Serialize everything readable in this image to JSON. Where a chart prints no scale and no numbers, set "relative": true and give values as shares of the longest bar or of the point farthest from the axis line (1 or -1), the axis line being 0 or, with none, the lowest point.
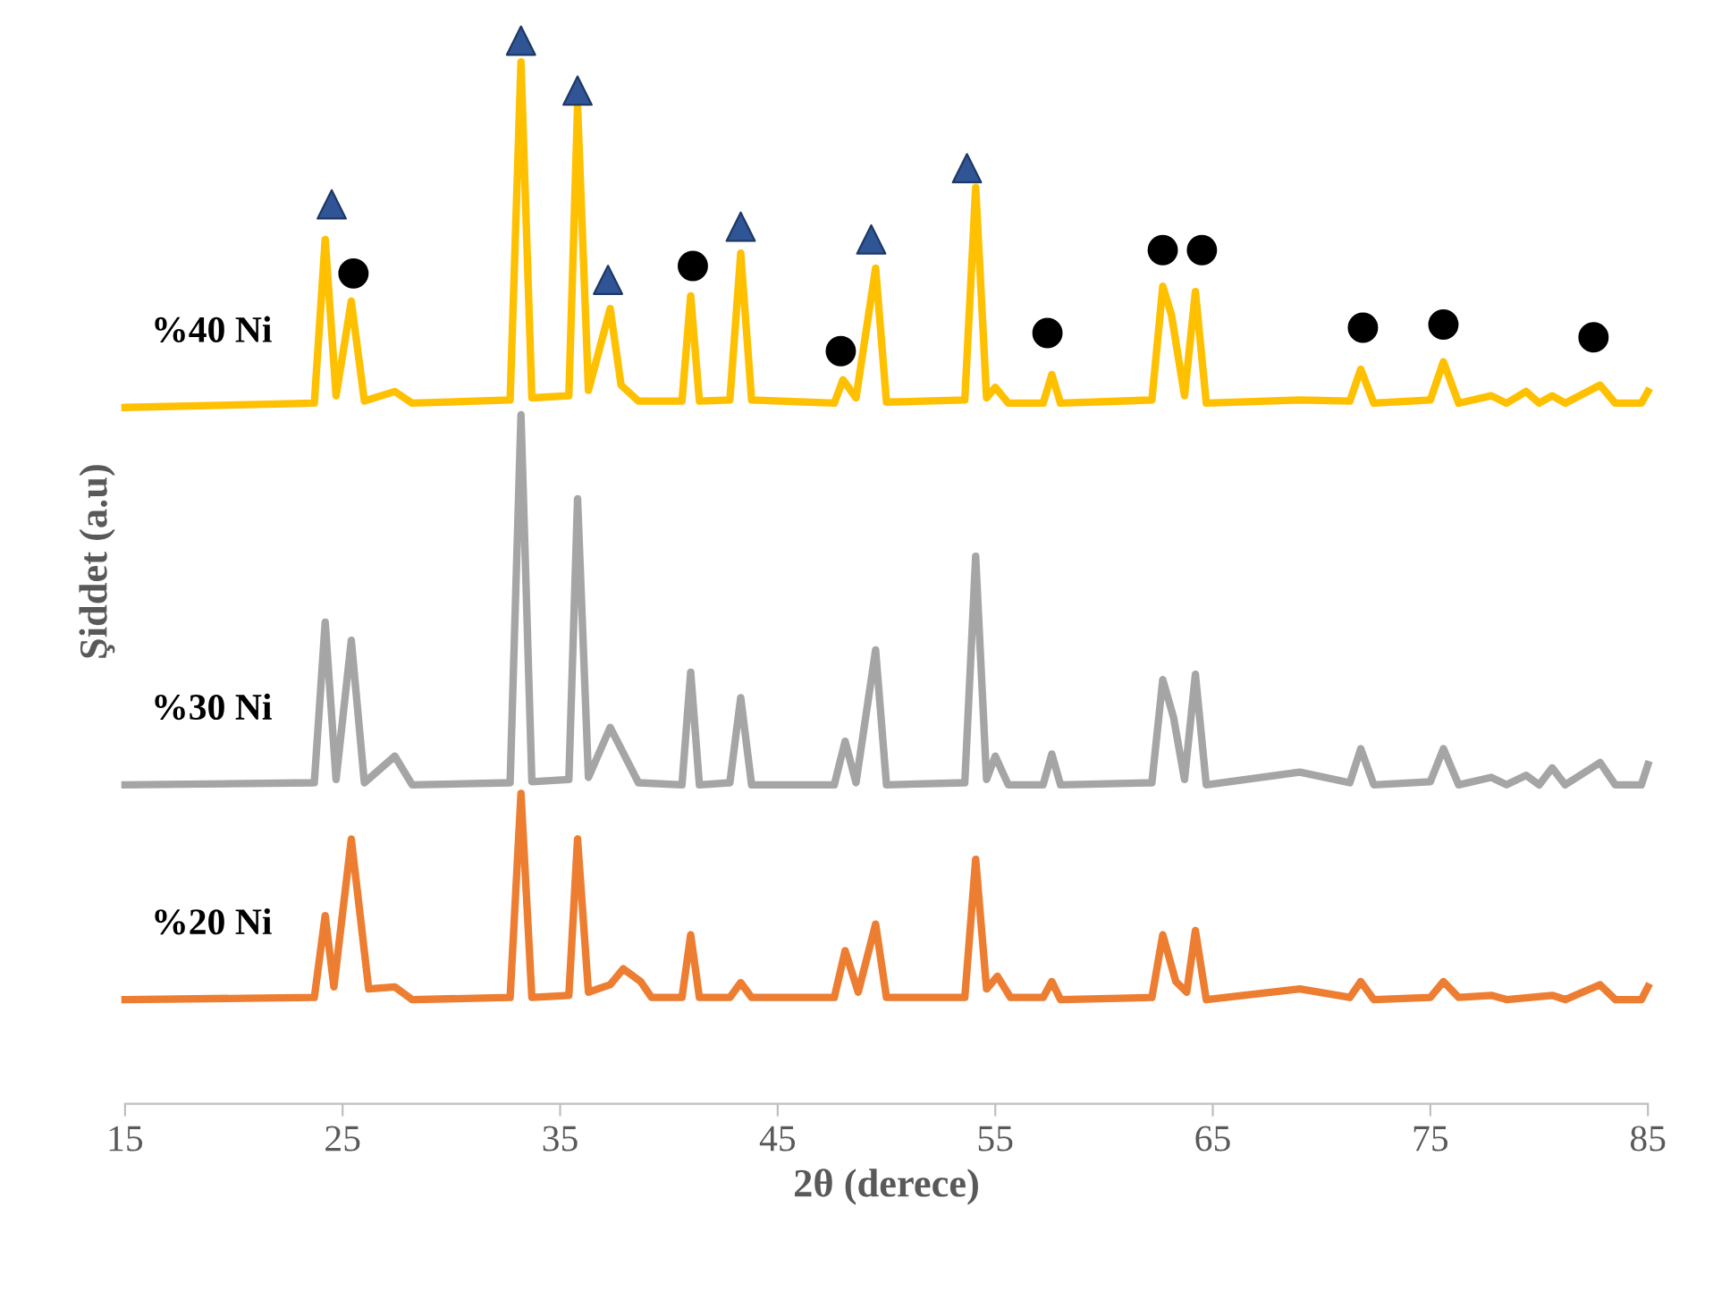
{
  "chart_data": {
    "type": "line",
    "relative": true,
    "xlabel": "2θ (derece)",
    "ylabel": "Şiddet (a.u)",
    "xlim": [
      15,
      85
    ],
    "xticks": [
      15,
      25,
      35,
      45,
      55,
      65,
      75,
      85
    ],
    "grid": false,
    "legend": false,
    "tick_labels": "x",
    "marker": "none",
    "line_style": "solid",
    "series": [
      {
        "name": "%40 Ni",
        "color": "#ffc000",
        "x": [
          15,
          23.7,
          24.2,
          24.7,
          25.4,
          26,
          27.4,
          28.2,
          32.7,
          33.2,
          33.7,
          35.4,
          35.8,
          36.3,
          37.3,
          37.8,
          38.6,
          40.6,
          41.0,
          41.4,
          42.8,
          43.3,
          43.8,
          47.6,
          48.0,
          48.6,
          49.5,
          50.0,
          53.6,
          54.1,
          54.6,
          55.0,
          55.6,
          57.2,
          57.6,
          58.0,
          62.2,
          62.7,
          63.1,
          63.7,
          64.2,
          64.7,
          69,
          71.3,
          71.8,
          72.4,
          75.0,
          75.6,
          76.3,
          77.8,
          78.5,
          79.4,
          80.0,
          80.6,
          81.2,
          82.8,
          83.5,
          84.7,
          85
        ],
        "values": [
          0.655,
          0.659,
          0.813,
          0.666,
          0.755,
          0.661,
          0.67,
          0.659,
          0.662,
          0.98,
          0.664,
          0.666,
          0.938,
          0.671,
          0.748,
          0.676,
          0.661,
          0.661,
          0.76,
          0.661,
          0.662,
          0.8,
          0.662,
          0.659,
          0.681,
          0.664,
          0.786,
          0.66,
          0.662,
          0.862,
          0.664,
          0.674,
          0.659,
          0.659,
          0.686,
          0.659,
          0.662,
          0.769,
          0.742,
          0.666,
          0.764,
          0.659,
          0.662,
          0.661,
          0.691,
          0.659,
          0.662,
          0.698,
          0.659,
          0.666,
          0.659,
          0.67,
          0.659,
          0.666,
          0.659,
          0.676,
          0.659,
          0.659,
          0.67
        ]
      },
      {
        "name": "%30 Ni",
        "color": "#a5a5a5",
        "x": [
          15,
          23.7,
          24.2,
          24.7,
          25.4,
          26,
          27.4,
          28.2,
          32.7,
          33.2,
          33.7,
          35.4,
          35.8,
          36.3,
          37.3,
          37.9,
          38.6,
          40.6,
          41.0,
          41.4,
          42.8,
          43.3,
          43.8,
          47.6,
          48.1,
          48.6,
          49.5,
          50.0,
          53.6,
          54.1,
          54.6,
          55.0,
          55.6,
          57.2,
          57.6,
          58.0,
          62.2,
          62.7,
          63.2,
          63.7,
          64.2,
          64.7,
          69,
          71.3,
          71.8,
          72.4,
          75.0,
          75.6,
          76.3,
          77.8,
          78.5,
          79.4,
          80.0,
          80.6,
          81.2,
          82.8,
          83.5,
          84.7,
          85
        ],
        "values": [
          0.3,
          0.302,
          0.453,
          0.305,
          0.436,
          0.302,
          0.327,
          0.3,
          0.302,
          0.648,
          0.303,
          0.305,
          0.569,
          0.307,
          0.354,
          0.33,
          0.302,
          0.3,
          0.406,
          0.3,
          0.302,
          0.382,
          0.3,
          0.3,
          0.341,
          0.302,
          0.427,
          0.3,
          0.302,
          0.515,
          0.305,
          0.327,
          0.3,
          0.3,
          0.329,
          0.3,
          0.302,
          0.399,
          0.363,
          0.305,
          0.404,
          0.3,
          0.312,
          0.302,
          0.334,
          0.3,
          0.303,
          0.334,
          0.3,
          0.307,
          0.3,
          0.309,
          0.3,
          0.316,
          0.3,
          0.321,
          0.3,
          0.3,
          0.319
        ]
      },
      {
        "name": "%20 Ni",
        "color": "#ed7d31",
        "x": [
          15,
          23.7,
          24.2,
          24.6,
          25.4,
          26.2,
          27.4,
          28.2,
          32.7,
          33.2,
          33.7,
          35.4,
          35.8,
          36.3,
          37.3,
          37.9,
          38.7,
          39.2,
          40.6,
          41.0,
          41.4,
          42.8,
          43.3,
          43.8,
          47.6,
          48.1,
          48.7,
          49.5,
          50.0,
          53.6,
          54.1,
          54.6,
          55.1,
          55.7,
          57.2,
          57.6,
          58.0,
          62.2,
          62.7,
          63.3,
          63.8,
          64.2,
          64.7,
          69,
          71.3,
          71.8,
          72.4,
          75.0,
          75.6,
          76.3,
          77.8,
          78.5,
          80.6,
          81.2,
          82.8,
          83.5,
          84.7,
          85
        ],
        "values": [
          0.098,
          0.1,
          0.177,
          0.11,
          0.249,
          0.108,
          0.11,
          0.098,
          0.1,
          0.292,
          0.1,
          0.102,
          0.249,
          0.105,
          0.112,
          0.127,
          0.115,
          0.1,
          0.1,
          0.159,
          0.1,
          0.1,
          0.114,
          0.1,
          0.1,
          0.144,
          0.105,
          0.169,
          0.1,
          0.1,
          0.23,
          0.108,
          0.12,
          0.1,
          0.1,
          0.115,
          0.098,
          0.1,
          0.159,
          0.115,
          0.105,
          0.163,
          0.098,
          0.108,
          0.1,
          0.115,
          0.098,
          0.1,
          0.115,
          0.1,
          0.102,
          0.098,
          0.102,
          0.098,
          0.112,
          0.098,
          0.098,
          0.11
        ]
      },
      {
        "type": "scatter",
        "marker": "triangle",
        "color": "#2f5597",
        "x": [
          24.5,
          33.2,
          35.8,
          37.2,
          43.3,
          49.3,
          53.7
        ],
        "values": [
          0.846,
          1.0,
          0.953,
          0.775,
          0.825,
          0.813,
          0.88
        ]
      },
      {
        "type": "scatter",
        "marker": "circle",
        "color": "#000000",
        "x": [
          25.5,
          41.1,
          47.9,
          57.4,
          62.7,
          64.5,
          71.9,
          75.6,
          82.5
        ],
        "values": [
          0.781,
          0.788,
          0.708,
          0.725,
          0.803,
          0.803,
          0.73,
          0.733,
          0.721
        ]
      }
    ]
  }
}
